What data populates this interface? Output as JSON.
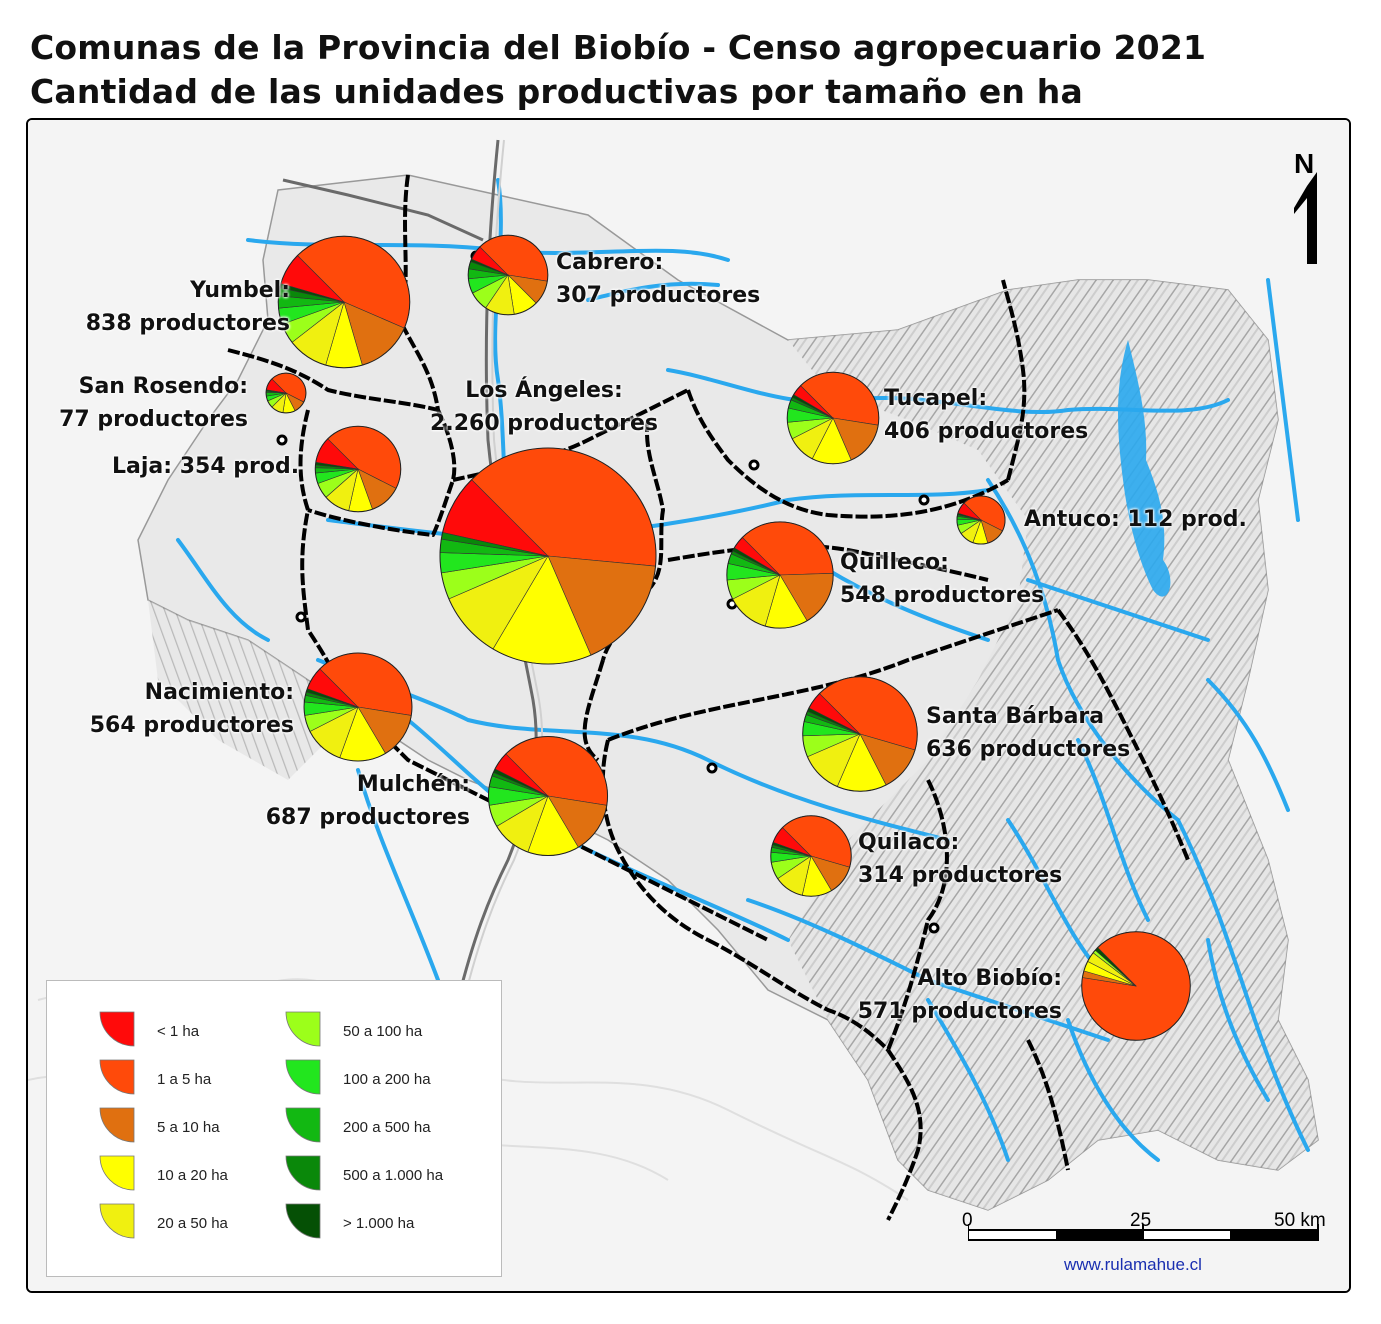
{
  "title": {
    "line1": "Comunas de la Provincia del Biobío - Censo agropecuario 2021",
    "line2": "Cantidad de las unidades productivas por tamaño en ha"
  },
  "colors": {
    "lt1": "#ff0a0a",
    "1to5": "#ff4a0a",
    "5to10": "#e07010",
    "10to20": "#ffff00",
    "20to50": "#f0f010",
    "50to100": "#9cff1a",
    "100to200": "#22e61e",
    "200to500": "#12b812",
    "500to1000": "#0a880a",
    "gt1000": "#055005",
    "river": "#2aa8ee",
    "boundary": "#000000"
  },
  "legend": [
    {
      "label": "< 1 ha",
      "color": "#ff0a0a"
    },
    {
      "label": "1 a 5 ha",
      "color": "#ff4a0a"
    },
    {
      "label": "5 a 10 ha",
      "color": "#e07010"
    },
    {
      "label": "10 a 20 ha",
      "color": "#ffff00"
    },
    {
      "label": "20 a 50 ha",
      "color": "#f0f010"
    },
    {
      "label": "50 a 100 ha",
      "color": "#9cff1a"
    },
    {
      "label": "100 a 200 ha",
      "color": "#22e61e"
    },
    {
      "label": "200 a 500 ha",
      "color": "#12b812"
    },
    {
      "label": "500 a 1.000 ha",
      "color": "#0a880a"
    },
    {
      "label": "> 1.000 ha",
      "color": "#055005"
    }
  ],
  "communes": [
    {
      "name": "Yumbel:",
      "count": "838 productores",
      "total": 838,
      "shares": [
        0.08,
        0.44,
        0.14,
        0.09,
        0.1,
        0.05,
        0.04,
        0.03,
        0.02,
        0.01
      ]
    },
    {
      "name": "Cabrero:",
      "count": "307 productores",
      "total": 307,
      "shares": [
        0.06,
        0.4,
        0.1,
        0.1,
        0.12,
        0.08,
        0.06,
        0.04,
        0.03,
        0.01
      ]
    },
    {
      "name": "San Rosendo:",
      "count": "77 productores",
      "total": 77,
      "shares": [
        0.1,
        0.45,
        0.1,
        0.1,
        0.1,
        0.06,
        0.04,
        0.03,
        0.01,
        0.01
      ]
    },
    {
      "name": "Los Ángeles:",
      "count": "2.260 productores",
      "total": 2260,
      "shares": [
        0.09,
        0.39,
        0.17,
        0.15,
        0.1,
        0.04,
        0.03,
        0.02,
        0.01,
        0.0
      ]
    },
    {
      "name": "Laja: 354 prod.",
      "count": "",
      "total": 354,
      "shares": [
        0.1,
        0.45,
        0.12,
        0.09,
        0.1,
        0.06,
        0.04,
        0.02,
        0.01,
        0.01
      ]
    },
    {
      "name": "Tucapel:",
      "count": "406 productores",
      "total": 406,
      "shares": [
        0.04,
        0.4,
        0.16,
        0.14,
        0.1,
        0.06,
        0.05,
        0.03,
        0.01,
        0.01
      ]
    },
    {
      "name": "Antuco: 112 prod.",
      "count": "",
      "total": 112,
      "shares": [
        0.08,
        0.45,
        0.13,
        0.1,
        0.1,
        0.06,
        0.04,
        0.02,
        0.01,
        0.01
      ]
    },
    {
      "name": "Quilleco:",
      "count": "548 productores",
      "total": 548,
      "shares": [
        0.04,
        0.37,
        0.17,
        0.13,
        0.13,
        0.06,
        0.05,
        0.03,
        0.01,
        0.01
      ]
    },
    {
      "name": "Nacimiento:",
      "count": "564 productores",
      "total": 564,
      "shares": [
        0.07,
        0.4,
        0.14,
        0.14,
        0.12,
        0.05,
        0.04,
        0.02,
        0.01,
        0.01
      ]
    },
    {
      "name": "Santa Bárbara",
      "count": "636 productores",
      "total": 636,
      "shares": [
        0.05,
        0.42,
        0.13,
        0.14,
        0.12,
        0.06,
        0.04,
        0.02,
        0.01,
        0.01
      ]
    },
    {
      "name": "Mulchén:",
      "count": "687 productores",
      "total": 687,
      "shares": [
        0.05,
        0.4,
        0.14,
        0.14,
        0.11,
        0.06,
        0.05,
        0.03,
        0.01,
        0.01
      ]
    },
    {
      "name": "Quilaco:",
      "count": "314 productores",
      "total": 314,
      "shares": [
        0.07,
        0.42,
        0.12,
        0.12,
        0.12,
        0.07,
        0.04,
        0.02,
        0.01,
        0.01
      ]
    },
    {
      "name": "Alto Biobío:",
      "count": "571 productores",
      "total": 571,
      "shares": [
        0.0,
        0.9,
        0.02,
        0.03,
        0.03,
        0.01,
        0.0,
        0.0,
        0.0,
        0.01
      ]
    }
  ],
  "north": "N",
  "scale": {
    "labels": [
      "0",
      "25",
      "50 km"
    ]
  },
  "credit": "www.rulamahue.cl"
}
